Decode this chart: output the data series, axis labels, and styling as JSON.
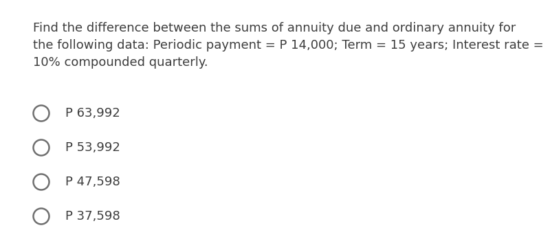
{
  "question_text_line1": "Find the difference between the sums of annuity due and ordinary annuity for",
  "question_text_line2": "the following data: Periodic payment = P 14,000; Term = 15 years; Interest rate =",
  "question_text_line3": "10% compounded quarterly.",
  "options": [
    "P 63,992",
    "P 53,992",
    "P 47,598",
    "P 37,598"
  ],
  "text_color": "#3d3d3d",
  "background_color": "#ffffff",
  "font_size_question": 13.0,
  "font_size_options": 13.0,
  "circle_color": "#707070",
  "circle_linewidth": 1.8
}
